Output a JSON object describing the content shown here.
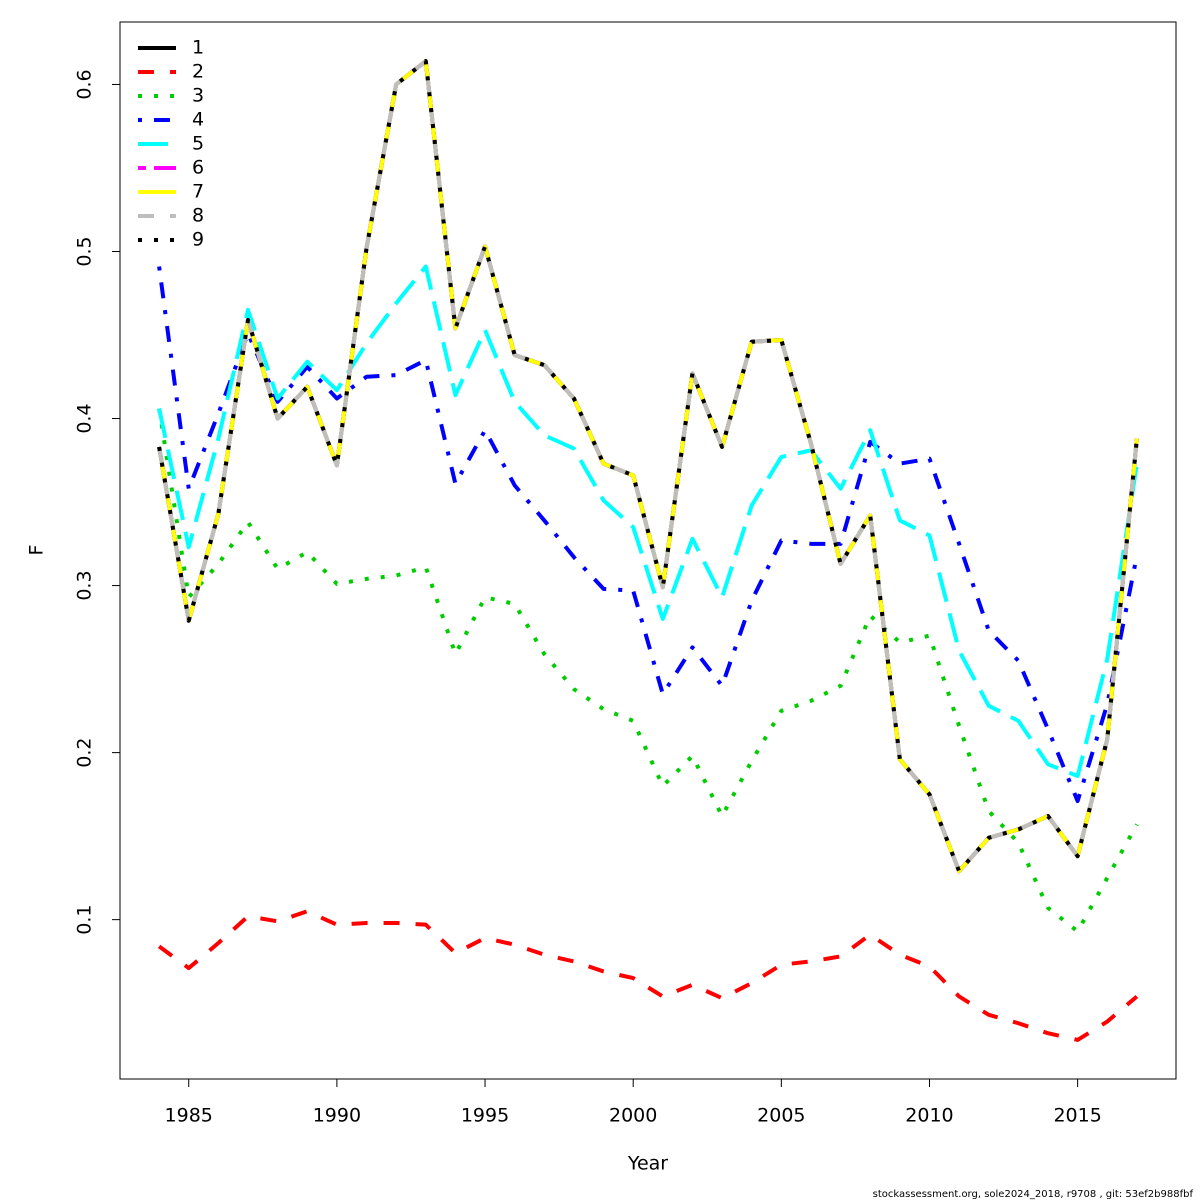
{
  "chart_data": {
    "type": "line",
    "x_label": "Year",
    "y_label": "F",
    "footer": "stockassessment.org, sole2024_2018, r9708 , git: 53ef2b988fbf",
    "legend": "top-left",
    "xlim": [
      1982.68,
      2018.32
    ],
    "xticks": [
      1985,
      1990,
      1995,
      2000,
      2005,
      2010,
      2015
    ],
    "ylim": [
      0.0046,
      0.6374
    ],
    "yticks": [
      0.1,
      0.2,
      0.3,
      0.4,
      0.5,
      0.6
    ],
    "x": [
      1984,
      1985,
      1986,
      1987,
      1988,
      1989,
      1990,
      1991,
      1992,
      1993,
      1994,
      1995,
      1996,
      1997,
      1998,
      1999,
      2000,
      2001,
      2002,
      2003,
      2004,
      2005,
      2006,
      2007,
      2008,
      2009,
      2010,
      2011,
      2012,
      2013,
      2014,
      2015,
      2016,
      2017
    ],
    "series": [
      {
        "name": "1",
        "color": "#000000",
        "linetype": "solid",
        "values": [
          0.383,
          0.279,
          0.343,
          0.459,
          0.4,
          0.419,
          0.372,
          0.502,
          0.6,
          0.614,
          0.454,
          0.503,
          0.438,
          0.432,
          0.412,
          0.373,
          0.366,
          0.299,
          0.427,
          0.383,
          0.446,
          0.447,
          0.385,
          0.313,
          0.342,
          0.196,
          0.175,
          0.129,
          0.149,
          0.154,
          0.162,
          0.138,
          0.208,
          0.388
        ]
      },
      {
        "name": "2",
        "color": "#ff0000",
        "linetype": "dashed",
        "values": [
          0.084,
          0.071,
          0.086,
          0.102,
          0.099,
          0.105,
          0.097,
          0.098,
          0.098,
          0.097,
          0.08,
          0.089,
          0.085,
          0.079,
          0.075,
          0.069,
          0.065,
          0.054,
          0.061,
          0.053,
          0.062,
          0.073,
          0.075,
          0.078,
          0.091,
          0.079,
          0.072,
          0.054,
          0.043,
          0.038,
          0.032,
          0.028,
          0.039,
          0.054
        ]
      },
      {
        "name": "3",
        "color": "#00cd00",
        "linetype": "dotted",
        "values": [
          0.406,
          0.293,
          0.313,
          0.338,
          0.31,
          0.32,
          0.301,
          0.304,
          0.306,
          0.311,
          0.259,
          0.293,
          0.289,
          0.259,
          0.238,
          0.226,
          0.219,
          0.18,
          0.198,
          0.162,
          0.195,
          0.225,
          0.231,
          0.24,
          0.282,
          0.266,
          0.27,
          0.216,
          0.165,
          0.146,
          0.107,
          0.093,
          0.125,
          0.157
        ]
      },
      {
        "name": "4",
        "color": "#0000ff",
        "linetype": "dotdash",
        "values": [
          0.491,
          0.358,
          0.403,
          0.451,
          0.41,
          0.431,
          0.412,
          0.425,
          0.426,
          0.435,
          0.361,
          0.393,
          0.36,
          0.339,
          0.317,
          0.298,
          0.297,
          0.235,
          0.263,
          0.24,
          0.291,
          0.327,
          0.325,
          0.325,
          0.386,
          0.373,
          0.376,
          0.325,
          0.273,
          0.255,
          0.214,
          0.171,
          0.229,
          0.318
        ]
      },
      {
        "name": "5",
        "color": "#00ffff",
        "linetype": "longdash",
        "values": [
          0.406,
          0.323,
          0.388,
          0.465,
          0.412,
          0.434,
          0.417,
          0.445,
          0.469,
          0.491,
          0.414,
          0.453,
          0.41,
          0.39,
          0.382,
          0.351,
          0.335,
          0.28,
          0.328,
          0.293,
          0.348,
          0.377,
          0.381,
          0.358,
          0.393,
          0.339,
          0.33,
          0.261,
          0.228,
          0.219,
          0.193,
          0.186,
          0.256,
          0.373
        ]
      },
      {
        "name": "6",
        "color": "#ff00ff",
        "linetype": "twodash",
        "values": [
          0.383,
          0.279,
          0.343,
          0.459,
          0.4,
          0.419,
          0.372,
          0.502,
          0.6,
          0.614,
          0.454,
          0.503,
          0.438,
          0.432,
          0.412,
          0.373,
          0.366,
          0.299,
          0.427,
          0.383,
          0.446,
          0.447,
          0.385,
          0.313,
          0.342,
          0.196,
          0.175,
          0.129,
          0.149,
          0.154,
          0.162,
          0.138,
          0.208,
          0.388
        ]
      },
      {
        "name": "7",
        "color": "#ffff00",
        "linetype": "solid",
        "values": [
          0.383,
          0.279,
          0.343,
          0.459,
          0.4,
          0.419,
          0.372,
          0.502,
          0.6,
          0.614,
          0.454,
          0.503,
          0.438,
          0.432,
          0.412,
          0.373,
          0.366,
          0.299,
          0.427,
          0.383,
          0.446,
          0.447,
          0.385,
          0.313,
          0.342,
          0.196,
          0.175,
          0.129,
          0.149,
          0.154,
          0.162,
          0.138,
          0.208,
          0.388
        ]
      },
      {
        "name": "8",
        "color": "#bebebe",
        "linetype": "dashed",
        "values": [
          0.383,
          0.279,
          0.343,
          0.459,
          0.4,
          0.419,
          0.372,
          0.502,
          0.6,
          0.614,
          0.454,
          0.503,
          0.438,
          0.432,
          0.412,
          0.373,
          0.366,
          0.299,
          0.427,
          0.383,
          0.446,
          0.447,
          0.385,
          0.313,
          0.342,
          0.196,
          0.175,
          0.129,
          0.149,
          0.154,
          0.162,
          0.138,
          0.208,
          0.388
        ]
      },
      {
        "name": "9",
        "color": "#000000",
        "linetype": "dotted",
        "values": [
          0.383,
          0.279,
          0.343,
          0.459,
          0.4,
          0.419,
          0.372,
          0.502,
          0.6,
          0.614,
          0.454,
          0.503,
          0.438,
          0.432,
          0.412,
          0.373,
          0.366,
          0.299,
          0.427,
          0.383,
          0.446,
          0.447,
          0.385,
          0.313,
          0.342,
          0.196,
          0.175,
          0.129,
          0.149,
          0.154,
          0.162,
          0.138,
          0.208,
          0.388
        ]
      }
    ]
  }
}
